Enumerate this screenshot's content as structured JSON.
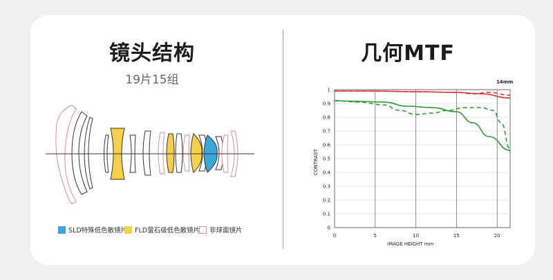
{
  "left_panel": {
    "title": "镜头结构",
    "subtitle": "19片15组",
    "legend": [
      {
        "label": "SLD特殊低色散镜片",
        "color": "#3aa7d9",
        "kind": "filled"
      },
      {
        "label": "FLD萤石级低色散镜片",
        "color": "#f7d04a",
        "kind": "filled"
      },
      {
        "label": "非球面镜片",
        "color": "#d98aa3",
        "kind": "outline"
      }
    ]
  },
  "right_panel": {
    "title": "几何MTF",
    "focal_label": "14mm"
  },
  "chart_data": {
    "type": "line",
    "xlabel": "IMAGE HEIGHT   mm",
    "ylabel": "CONTRAST",
    "xlim": [
      0,
      21.6
    ],
    "ylim": [
      0,
      1
    ],
    "xticks": [
      0,
      5,
      10,
      15,
      20
    ],
    "yticks": [
      0,
      0.1,
      0.2,
      0.3,
      0.4,
      0.5,
      0.6,
      0.7,
      0.8,
      0.9,
      1
    ],
    "grid": true,
    "series": [
      {
        "color": "#e03030",
        "style": "solid",
        "x": [
          0,
          5,
          10,
          15,
          18,
          21.6
        ],
        "y": [
          0.99,
          0.99,
          0.985,
          0.98,
          0.97,
          0.94
        ]
      },
      {
        "color": "#e03030",
        "style": "dashed",
        "x": [
          0,
          5,
          10,
          15,
          17,
          19,
          21.6
        ],
        "y": [
          0.99,
          0.99,
          0.985,
          0.98,
          0.97,
          0.98,
          0.96
        ]
      },
      {
        "color": "#2a9a2a",
        "style": "solid",
        "x": [
          0,
          3,
          6,
          9,
          12,
          15,
          17,
          19,
          21.6
        ],
        "y": [
          0.92,
          0.915,
          0.91,
          0.88,
          0.87,
          0.84,
          0.76,
          0.66,
          0.56
        ]
      },
      {
        "color": "#2a9a2a",
        "style": "dashed",
        "x": [
          0,
          3,
          6,
          8,
          10,
          12,
          14,
          16,
          18,
          19.5,
          20.5,
          21.6
        ],
        "y": [
          0.92,
          0.91,
          0.89,
          0.85,
          0.82,
          0.83,
          0.85,
          0.87,
          0.87,
          0.85,
          0.76,
          0.57
        ]
      }
    ]
  }
}
